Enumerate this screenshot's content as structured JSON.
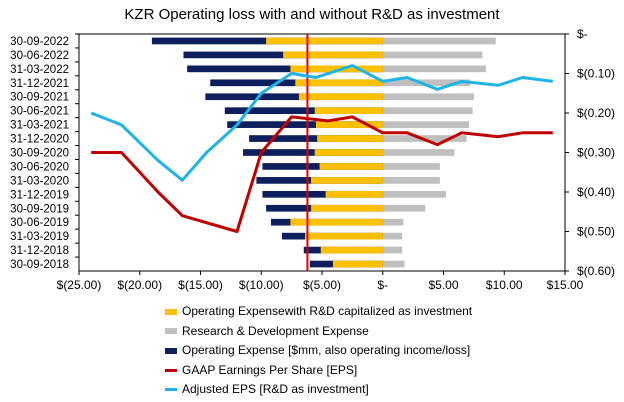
{
  "chart_data": {
    "type": "bar",
    "title": "KZR Operating loss with and without R&D as investment",
    "categories": [
      "30-09-2022",
      "30-06-2022",
      "31-03-2022",
      "31-12-2021",
      "30-09-2021",
      "30-06-2021",
      "31-03-2021",
      "31-12-2020",
      "30-09-2020",
      "30-06-2020",
      "31-03-2020",
      "31-12-2019",
      "30-09-2019",
      "30-06-2019",
      "31-03-2019",
      "31-12-2018",
      "30-09-2018"
    ],
    "x_axis": {
      "min": -25,
      "max": 15,
      "step": 5,
      "tick_labels": [
        "$(25.00)",
        "$(20.00)",
        "$(15.00)",
        "$(10.00)",
        "$(5.00)",
        "$-",
        "$5.00",
        "$10.00",
        "$15.00"
      ]
    },
    "y2_axis": {
      "min": -0.6,
      "max": 0,
      "step": 0.1,
      "tick_labels": [
        "$-",
        "$(0.10)",
        "$(0.20)",
        "$(0.30)",
        "$(0.40)",
        "$(0.50)",
        "$(0.60)"
      ]
    },
    "vline_x": -6.2,
    "series": [
      {
        "name": "Operating Expensewith R&D capitalized as investment",
        "kind": "bar",
        "color": "#FFC000",
        "values": [
          -9.6,
          -8.2,
          -7.6,
          -7.2,
          -6.9,
          -5.6,
          -5.5,
          -5.4,
          -5.6,
          -5.2,
          -5.9,
          -4.7,
          -5.9,
          -7.6,
          -6.4,
          -5.1,
          -4.1
        ]
      },
      {
        "name": "Research & Development Expense",
        "kind": "bar",
        "color": "#BFBFBF",
        "values": [
          9.3,
          8.2,
          8.5,
          7.2,
          7.5,
          7.4,
          7.1,
          6.9,
          5.9,
          4.7,
          4.7,
          5.2,
          3.5,
          1.7,
          1.6,
          1.6,
          1.8
        ]
      },
      {
        "name": "Operating Expense [$mm, also operating income/loss]",
        "kind": "bar",
        "color": "#0D1F5C",
        "values": [
          -19.0,
          -16.4,
          -16.1,
          -14.2,
          -14.6,
          -13.0,
          -12.8,
          -11.0,
          -11.5,
          -9.9,
          -10.4,
          -9.9,
          -9.6,
          -9.2,
          -8.3,
          -6.5,
          -6.0
        ]
      },
      {
        "name": "GAAP Earnings Per Share [EPS]",
        "kind": "line",
        "axis": "y2",
        "color": "#C00000",
        "x": [
          -24.0,
          -21.5,
          -18.5,
          -16.5,
          -12.0,
          -10.0,
          -7.5,
          -4.5,
          -2.5,
          0.0,
          2.0,
          4.5,
          6.5,
          9.5,
          11.5,
          14.0
        ],
        "values": [
          -0.3,
          -0.3,
          -0.4,
          -0.46,
          -0.5,
          -0.3,
          -0.21,
          -0.22,
          -0.21,
          -0.25,
          -0.25,
          -0.28,
          -0.25,
          -0.26,
          -0.25,
          -0.25
        ]
      },
      {
        "name": "Adjusted EPS [R&D as investment]",
        "kind": "line",
        "axis": "y2",
        "color": "#1FB4E8",
        "x": [
          -24.0,
          -21.5,
          -18.5,
          -16.5,
          -14.5,
          -12.0,
          -10.0,
          -7.5,
          -5.5,
          -2.5,
          0.0,
          2.0,
          4.5,
          6.5,
          9.5,
          11.5,
          14.0
        ],
        "values": [
          -0.2,
          -0.23,
          -0.32,
          -0.37,
          -0.3,
          -0.23,
          -0.15,
          -0.1,
          -0.11,
          -0.08,
          -0.12,
          -0.11,
          -0.14,
          -0.12,
          -0.13,
          -0.11,
          -0.12
        ]
      }
    ]
  }
}
